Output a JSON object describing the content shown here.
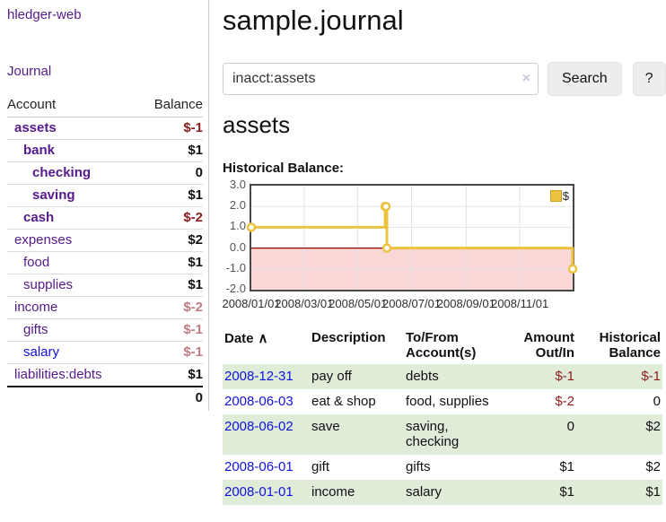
{
  "sidebar": {
    "brand": "hledger-web",
    "journal_link": "Journal",
    "accounts_table": {
      "headers": {
        "account": "Account",
        "balance": "Balance"
      },
      "rows": [
        {
          "account": "assets",
          "indent": 1,
          "balance": "$-1",
          "amount_class": "neg",
          "in_acct": true
        },
        {
          "account": "bank",
          "indent": 2,
          "balance": "$1",
          "amount_class": "",
          "in_acct": true
        },
        {
          "account": "checking",
          "indent": 3,
          "balance": "0",
          "amount_class": "",
          "in_acct": true
        },
        {
          "account": "saving",
          "indent": 3,
          "balance": "$1",
          "amount_class": "",
          "in_acct": true
        },
        {
          "account": "cash",
          "indent": 2,
          "balance": "$-2",
          "amount_class": "neg",
          "in_acct": true
        },
        {
          "account": "expenses",
          "indent": 1,
          "balance": "$2",
          "amount_class": "",
          "in_acct": false
        },
        {
          "account": "food",
          "indent": 2,
          "balance": "$1",
          "amount_class": "",
          "in_acct": false
        },
        {
          "account": "supplies",
          "indent": 2,
          "balance": "$1",
          "amount_class": "",
          "in_acct": false
        },
        {
          "account": "income",
          "indent": 1,
          "balance": "$-2",
          "amount_class": "neg-faded",
          "in_acct": false
        },
        {
          "account": "gifts",
          "indent": 2,
          "balance": "$-1",
          "amount_class": "neg-faded",
          "in_acct": false
        },
        {
          "account": "salary",
          "indent": 2,
          "balance": "$-1",
          "amount_class": "neg-faded",
          "in_acct": false,
          "unvisited": true
        },
        {
          "account": "liabilities:debts",
          "indent": 1,
          "balance": "$1",
          "amount_class": "",
          "in_acct": false
        }
      ],
      "total": "0"
    }
  },
  "header": {
    "title": "sample.journal"
  },
  "search": {
    "value": "inacct:assets",
    "clear_icon": "×",
    "search_button": "Search",
    "help_button": "?"
  },
  "account_page": {
    "heading": "assets",
    "chart_label": "Historical Balance:"
  },
  "chart_data": {
    "type": "line",
    "subtype": "step",
    "title": "Historical Balance:",
    "x_start": "2008-01-01",
    "x_end": "2008-12-31",
    "ylim": [
      -2,
      3
    ],
    "y_ticks": [
      {
        "value": 3,
        "label": "3.0"
      },
      {
        "value": 2,
        "label": "2.0"
      },
      {
        "value": 1,
        "label": "1.0"
      },
      {
        "value": 0,
        "label": "0.0"
      },
      {
        "value": -1,
        "label": "-1.0"
      },
      {
        "value": -2,
        "label": "-2.0"
      }
    ],
    "x_ticks": [
      {
        "date": "2008-01-01",
        "label": "2008/01/01"
      },
      {
        "date": "2008-03-01",
        "label": "2008/03/01"
      },
      {
        "date": "2008-05-01",
        "label": "2008/05/01"
      },
      {
        "date": "2008-07-01",
        "label": "2008/07/01"
      },
      {
        "date": "2008-09-01",
        "label": "2008/09/01"
      },
      {
        "date": "2008-11-01",
        "label": "2008/11/01"
      }
    ],
    "series": [
      {
        "name": "$",
        "color": "#edc240",
        "points": [
          {
            "date": "2008-01-01",
            "value": 1
          },
          {
            "date": "2008-06-01",
            "value": 2
          },
          {
            "date": "2008-06-02",
            "value": 2
          },
          {
            "date": "2008-06-03",
            "value": 0
          },
          {
            "date": "2008-12-31",
            "value": -1
          }
        ]
      }
    ],
    "legend_position": "top-right",
    "grid": true,
    "negative_fill": "#f9d7d7",
    "zero_line_color": "#8b0000",
    "grid_color": "#e3e3e3",
    "marker": {
      "fill": "#ffffff",
      "radius": 4
    }
  },
  "register_table": {
    "headers": {
      "date": "Date",
      "description": "Description",
      "accounts": "To/From\nAccount(s)",
      "amount": "Amount\nOut/In",
      "balance": "Historical\nBalance"
    },
    "sort_arrow": "∧",
    "rows": [
      {
        "date": "2008-12-31",
        "description": "pay off",
        "accounts": "debts",
        "amount": "$-1",
        "balance": "$-1"
      },
      {
        "date": "2008-06-03",
        "description": "eat & shop",
        "accounts": "food, supplies",
        "amount": "$-2",
        "balance": "0"
      },
      {
        "date": "2008-06-02",
        "description": "save",
        "accounts": "saving,\nchecking",
        "amount": "0",
        "balance": "$2"
      },
      {
        "date": "2008-06-01",
        "description": "gift",
        "accounts": "gifts",
        "amount": "$1",
        "balance": "$2"
      },
      {
        "date": "2008-01-01",
        "description": "income",
        "accounts": "salary",
        "amount": "$1",
        "balance": "$1"
      }
    ]
  }
}
